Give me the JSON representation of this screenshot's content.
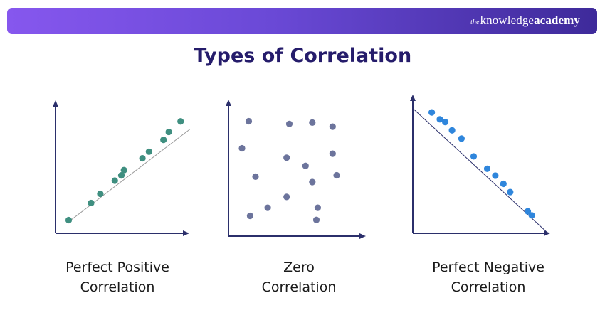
{
  "header": {
    "logo": {
      "the": "the",
      "knowledge": "knowledge",
      "academy": "academy"
    }
  },
  "title": "Types of Correlation",
  "colors": {
    "axis": "#2b2f6b",
    "trend_line": "#9a9a9a",
    "positive": "#3f8f80",
    "zero": "#6c749c",
    "negative": "#2f86dc"
  },
  "chart_data": [
    {
      "type": "scatter",
      "trend": "increasing",
      "points": [
        [
          1,
          1
        ],
        [
          2.7,
          2.3
        ],
        [
          3.4,
          3
        ],
        [
          4.5,
          4
        ],
        [
          5,
          4.4
        ],
        [
          5.2,
          4.8
        ],
        [
          6.6,
          5.7
        ],
        [
          7.1,
          6.2
        ],
        [
          8.2,
          7.1
        ],
        [
          8.6,
          7.7
        ],
        [
          9.5,
          8.5
        ]
      ],
      "caption_lines": [
        "Perfect Positive",
        "Correlation"
      ]
    },
    {
      "type": "scatter",
      "trend": "none",
      "points": [
        [
          1.5,
          8.5
        ],
        [
          4.5,
          8.3
        ],
        [
          6.2,
          8.4
        ],
        [
          7.7,
          8.1
        ],
        [
          1,
          6.5
        ],
        [
          4.3,
          5.8
        ],
        [
          5.7,
          5.2
        ],
        [
          7.7,
          6.1
        ],
        [
          2,
          4.4
        ],
        [
          6.2,
          4
        ],
        [
          8,
          4.5
        ],
        [
          4.3,
          2.9
        ],
        [
          2.9,
          2.1
        ],
        [
          6.6,
          2.1
        ],
        [
          1.6,
          1.5
        ],
        [
          6.5,
          1.2
        ]
      ],
      "caption_lines": [
        "Zero",
        "Correlation"
      ]
    },
    {
      "type": "scatter",
      "trend": "decreasing",
      "points": [
        [
          1.4,
          8.8
        ],
        [
          2,
          8.3
        ],
        [
          2.4,
          8.1
        ],
        [
          2.9,
          7.5
        ],
        [
          3.6,
          6.9
        ],
        [
          4.5,
          5.6
        ],
        [
          5.5,
          4.7
        ],
        [
          6.1,
          4.2
        ],
        [
          6.7,
          3.6
        ],
        [
          7.2,
          3
        ],
        [
          8.5,
          1.6
        ],
        [
          8.8,
          1.3
        ]
      ],
      "caption_lines": [
        "Perfect Negative",
        "Correlation"
      ]
    }
  ]
}
